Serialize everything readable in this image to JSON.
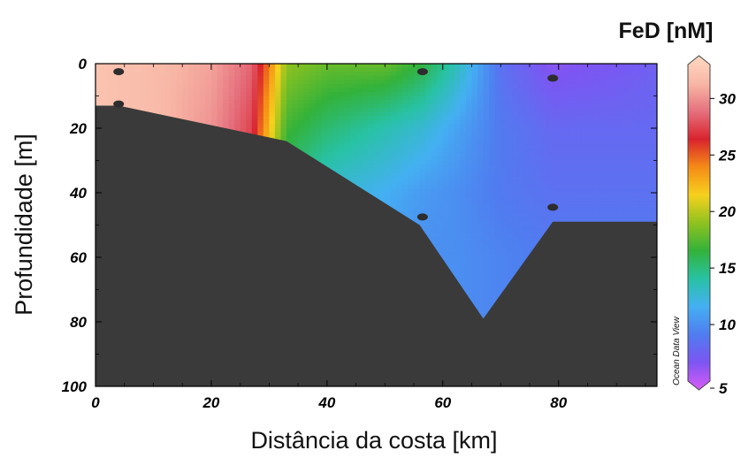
{
  "chart_data": {
    "type": "heatmap",
    "title": "",
    "colorbar_title": "FeD [nM]",
    "xlabel": "Distância da costa [km]",
    "ylabel": "Profundidade [m]",
    "xlim": [
      0,
      97
    ],
    "ylim": [
      100,
      0
    ],
    "y_inverted": true,
    "x_ticks": [
      "0",
      "20",
      "40",
      "60",
      "80"
    ],
    "y_ticks": [
      "0",
      "20",
      "40",
      "60",
      "80",
      "100"
    ],
    "colorbar": {
      "range": [
        5,
        33
      ],
      "ticks": [
        "5",
        "10",
        "15",
        "20",
        "25",
        "30"
      ],
      "palette": [
        "#d95cf7",
        "#7d55f2",
        "#4f7df0",
        "#44b0f2",
        "#28c2a4",
        "#33b23a",
        "#90c21f",
        "#f6d11d",
        "#f58b16",
        "#d9232d",
        "#e5707d",
        "#f8b7a6",
        "#ffd9c2"
      ]
    },
    "bathymetry": {
      "distance_km": [
        0,
        4,
        33,
        56,
        67,
        79,
        97
      ],
      "depth_m": [
        13,
        13,
        24,
        50,
        79,
        49,
        49
      ],
      "color": "#3a3a3a"
    },
    "stations": [
      {
        "distance_km": 4,
        "depth_m": 2.5
      },
      {
        "distance_km": 4,
        "depth_m": 12.5
      },
      {
        "distance_km": 56.5,
        "depth_m": 2.5
      },
      {
        "distance_km": 56.5,
        "depth_m": 47.5
      },
      {
        "distance_km": 79,
        "depth_m": 4.5
      },
      {
        "distance_km": 79,
        "depth_m": 44.5
      }
    ],
    "field_grid": {
      "distance_km": [
        0,
        10,
        20,
        27,
        30,
        33,
        40,
        50,
        56.5,
        62,
        70,
        79,
        90,
        97
      ],
      "depth_m": [
        0,
        20,
        40,
        60,
        80
      ],
      "fed_nM": [
        [
          31.5,
          31.0,
          30.0,
          28.0,
          24.0,
          19.0,
          18.0,
          18.0,
          16.5,
          14.0,
          9.0,
          7.0,
          7.5,
          8.0
        ],
        [
          31.5,
          31.0,
          29.5,
          27.0,
          22.0,
          17.0,
          15.5,
          14.0,
          13.0,
          11.5,
          9.5,
          8.5,
          8.5,
          8.5
        ],
        [
          31.0,
          30.5,
          29.0,
          26.0,
          20.0,
          15.0,
          13.0,
          12.0,
          11.0,
          10.5,
          9.5,
          9.0,
          9.0,
          9.0
        ],
        [
          31.0,
          30.0,
          28.5,
          25.0,
          19.0,
          14.0,
          12.0,
          11.0,
          10.5,
          10.5,
          10.0,
          9.5,
          9.5,
          9.5
        ],
        [
          31.0,
          30.0,
          28.0,
          24.0,
          18.0,
          13.5,
          11.5,
          10.5,
          10.5,
          10.5,
          10.0,
          9.5,
          9.5,
          9.5
        ]
      ]
    },
    "watermark": "Ocean Data View"
  }
}
